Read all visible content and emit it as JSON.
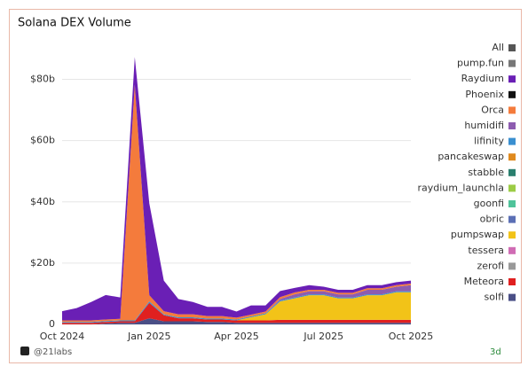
{
  "chart_data": {
    "type": "stacked_area",
    "title": "Solana DEX Volume",
    "legend_toggle": {
      "name": "All",
      "color": "#555555"
    },
    "x": [
      0,
      0.5,
      1,
      1.5,
      2,
      2.5,
      3,
      3.5,
      4,
      4.5,
      5,
      5.5,
      6,
      6.5,
      7,
      7.5,
      8,
      8.5,
      9,
      9.5,
      10,
      10.5,
      11,
      11.5,
      12
    ],
    "xlim": [
      0,
      12
    ],
    "xticks": [
      {
        "value": 0,
        "label": "Oct 2024"
      },
      {
        "value": 3,
        "label": "Jan 2025"
      },
      {
        "value": 6,
        "label": "Apr 2025"
      },
      {
        "value": 9,
        "label": "Jul 2025"
      },
      {
        "value": 12,
        "label": "Oct 2025"
      }
    ],
    "ylim": [
      0,
      90
    ],
    "yticks": [
      0,
      {
        "value": 20,
        "label": "$20b"
      },
      {
        "value": 40,
        "label": "$40b"
      },
      {
        "value": 60,
        "label": "$60b"
      },
      {
        "value": 80,
        "label": "$80b"
      }
    ],
    "grid": true,
    "series": [
      {
        "name": "pump.fun",
        "color": "#777777",
        "values": [
          0,
          0,
          0,
          0,
          0,
          0,
          0,
          0,
          0,
          0,
          0,
          0,
          0,
          0,
          0,
          0,
          0,
          0,
          0,
          0,
          0,
          0,
          0,
          0,
          0
        ]
      },
      {
        "name": "Raydium",
        "color": "#6a1fb5",
        "values": [
          3,
          4,
          6,
          8,
          7,
          9,
          30,
          10,
          5,
          4,
          3,
          3,
          2,
          3,
          2,
          2,
          1.5,
          1.5,
          1,
          1,
          1,
          1,
          1,
          1,
          1
        ]
      },
      {
        "name": "Phoenix",
        "color": "#111111",
        "values": [
          0,
          0,
          0,
          0,
          0,
          0,
          0,
          0,
          0,
          0,
          0,
          0,
          0,
          0,
          0,
          0,
          0,
          0,
          0,
          0,
          0,
          0,
          0,
          0,
          0
        ]
      },
      {
        "name": "Orca",
        "color": "#f47b3c",
        "values": [
          0.5,
          0.5,
          0.5,
          0.5,
          0.5,
          77,
          2,
          1,
          1,
          1,
          0.8,
          0.8,
          0.6,
          0.6,
          0.6,
          0.6,
          0.6,
          0.5,
          0.5,
          0.5,
          0.5,
          0.5,
          0.5,
          0.5,
          0.5
        ]
      },
      {
        "name": "humidifi",
        "color": "#8d5cb0",
        "values": [
          0,
          0,
          0,
          0,
          0,
          0,
          0,
          0,
          0,
          0,
          0,
          0,
          0,
          0,
          0,
          0.5,
          1,
          1,
          1,
          1,
          1,
          1.5,
          1.5,
          1.5,
          2
        ]
      },
      {
        "name": "lifinity",
        "color": "#3a8fd0",
        "values": [
          0.3,
          0.3,
          0.3,
          0.3,
          0.3,
          0.3,
          0.5,
          0.3,
          0.3,
          0.3,
          0.3,
          0.3,
          0.3,
          0.3,
          0.3,
          0.3,
          0.3,
          0.3,
          0.3,
          0.3,
          0.3,
          0.3,
          0.3,
          0.3,
          0.3
        ]
      },
      {
        "name": "pancakeswap",
        "color": "#e08a1e",
        "values": [
          0,
          0,
          0,
          0,
          0,
          0,
          0,
          0,
          0,
          0,
          0,
          0,
          0,
          0,
          0,
          0,
          0,
          0,
          0,
          0,
          0,
          0,
          0,
          0,
          0
        ]
      },
      {
        "name": "stabble",
        "color": "#2a7f6e",
        "values": [
          0,
          0,
          0,
          0,
          0,
          0,
          0,
          0,
          0,
          0,
          0,
          0,
          0,
          0,
          0,
          0,
          0,
          0,
          0,
          0,
          0,
          0,
          0,
          0,
          0
        ]
      },
      {
        "name": "raydium_launchla",
        "color": "#9ccc45",
        "values": [
          0,
          0,
          0,
          0,
          0,
          0,
          0,
          0,
          0,
          0,
          0,
          0,
          0,
          0,
          0,
          0,
          0,
          0,
          0,
          0,
          0,
          0,
          0,
          0,
          0
        ]
      },
      {
        "name": "goonfi",
        "color": "#4fc39a",
        "values": [
          0,
          0,
          0,
          0,
          0,
          0,
          0,
          0,
          0,
          0,
          0,
          0,
          0,
          0,
          0,
          0,
          0,
          0,
          0,
          0,
          0,
          0,
          0,
          0,
          0
        ]
      },
      {
        "name": "obric",
        "color": "#5b6fb5",
        "values": [
          0,
          0,
          0,
          0,
          0,
          0,
          0,
          0,
          0,
          0,
          0,
          0,
          0,
          0,
          0,
          0,
          0,
          0,
          0,
          0,
          0,
          0,
          0,
          0,
          0
        ]
      },
      {
        "name": "pumpswap",
        "color": "#f2c318",
        "values": [
          0,
          0,
          0,
          0,
          0,
          0,
          0,
          0,
          0,
          0,
          0,
          0,
          0,
          1,
          2,
          6,
          7,
          8,
          8,
          7,
          7,
          8,
          8,
          9,
          9
        ]
      },
      {
        "name": "tessera",
        "color": "#d06cb4",
        "values": [
          0,
          0,
          0,
          0,
          0,
          0,
          0,
          0,
          0,
          0,
          0,
          0,
          0,
          0,
          0,
          0,
          0,
          0,
          0,
          0,
          0,
          0,
          0,
          0,
          0
        ]
      },
      {
        "name": "zerofi",
        "color": "#999999",
        "values": [
          0,
          0,
          0,
          0,
          0,
          0,
          0,
          0,
          0,
          0,
          0,
          0,
          0,
          0,
          0,
          0,
          0,
          0,
          0,
          0,
          0,
          0,
          0,
          0,
          0
        ]
      },
      {
        "name": "Meteora",
        "color": "#e02020",
        "values": [
          0.5,
          0.5,
          0.5,
          0.5,
          0.5,
          0.5,
          5,
          2,
          1,
          1,
          0.8,
          0.8,
          0.8,
          0.8,
          0.8,
          1,
          1,
          1,
          1,
          1,
          1,
          1,
          1,
          1,
          1
        ]
      },
      {
        "name": "solfi",
        "color": "#4a4f86",
        "values": [
          0,
          0,
          0,
          0.3,
          0.5,
          0.5,
          2,
          1,
          1,
          1,
          0.8,
          0.8,
          0.5,
          0.5,
          0.5,
          0.5,
          0.5,
          0.5,
          0.5,
          0.5,
          0.5,
          0.5,
          0.5,
          0.5,
          0.5
        ]
      }
    ]
  },
  "footer": {
    "source": "@21labs",
    "badge": "3d"
  }
}
